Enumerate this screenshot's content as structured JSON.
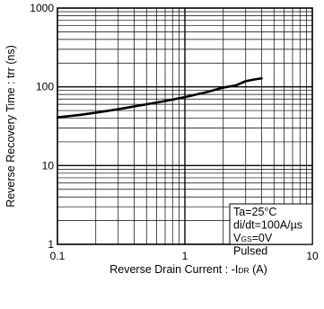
{
  "chart_data": {
    "type": "line",
    "xlabel": "Reverse Drain Current : -IDR (A)",
    "xlabel_parts": {
      "prefix": "Reverse Drain Current : -I",
      "sub": "DR",
      "suffix": " (A)"
    },
    "ylabel": "Reverse Recovery Time : trr (ns)",
    "xscale": "log",
    "yscale": "log",
    "xlim": [
      0.1,
      10
    ],
    "ylim": [
      1,
      1000
    ],
    "x_tick_labels": [
      "0.1",
      "1",
      "10"
    ],
    "y_tick_labels": [
      "1",
      "10",
      "100",
      "1000"
    ],
    "grid": true,
    "series": [
      {
        "x": [
          0.1,
          0.15,
          0.2,
          0.3,
          0.5,
          0.7,
          1.0,
          1.5,
          2.0,
          2.5,
          3.0,
          3.5,
          4.0
        ],
        "values": [
          41,
          44,
          47,
          52,
          60,
          66,
          74,
          86,
          98,
          104,
          118,
          124,
          128
        ]
      }
    ],
    "annotations": [
      {
        "text": "Ta=25°C"
      },
      {
        "text": "di/dt=100A/µs"
      },
      {
        "prefix": "V",
        "sub": "GS",
        "suffix": "=0V"
      },
      {
        "text": "Pulsed"
      }
    ],
    "annotation_position": "bottom-right"
  }
}
